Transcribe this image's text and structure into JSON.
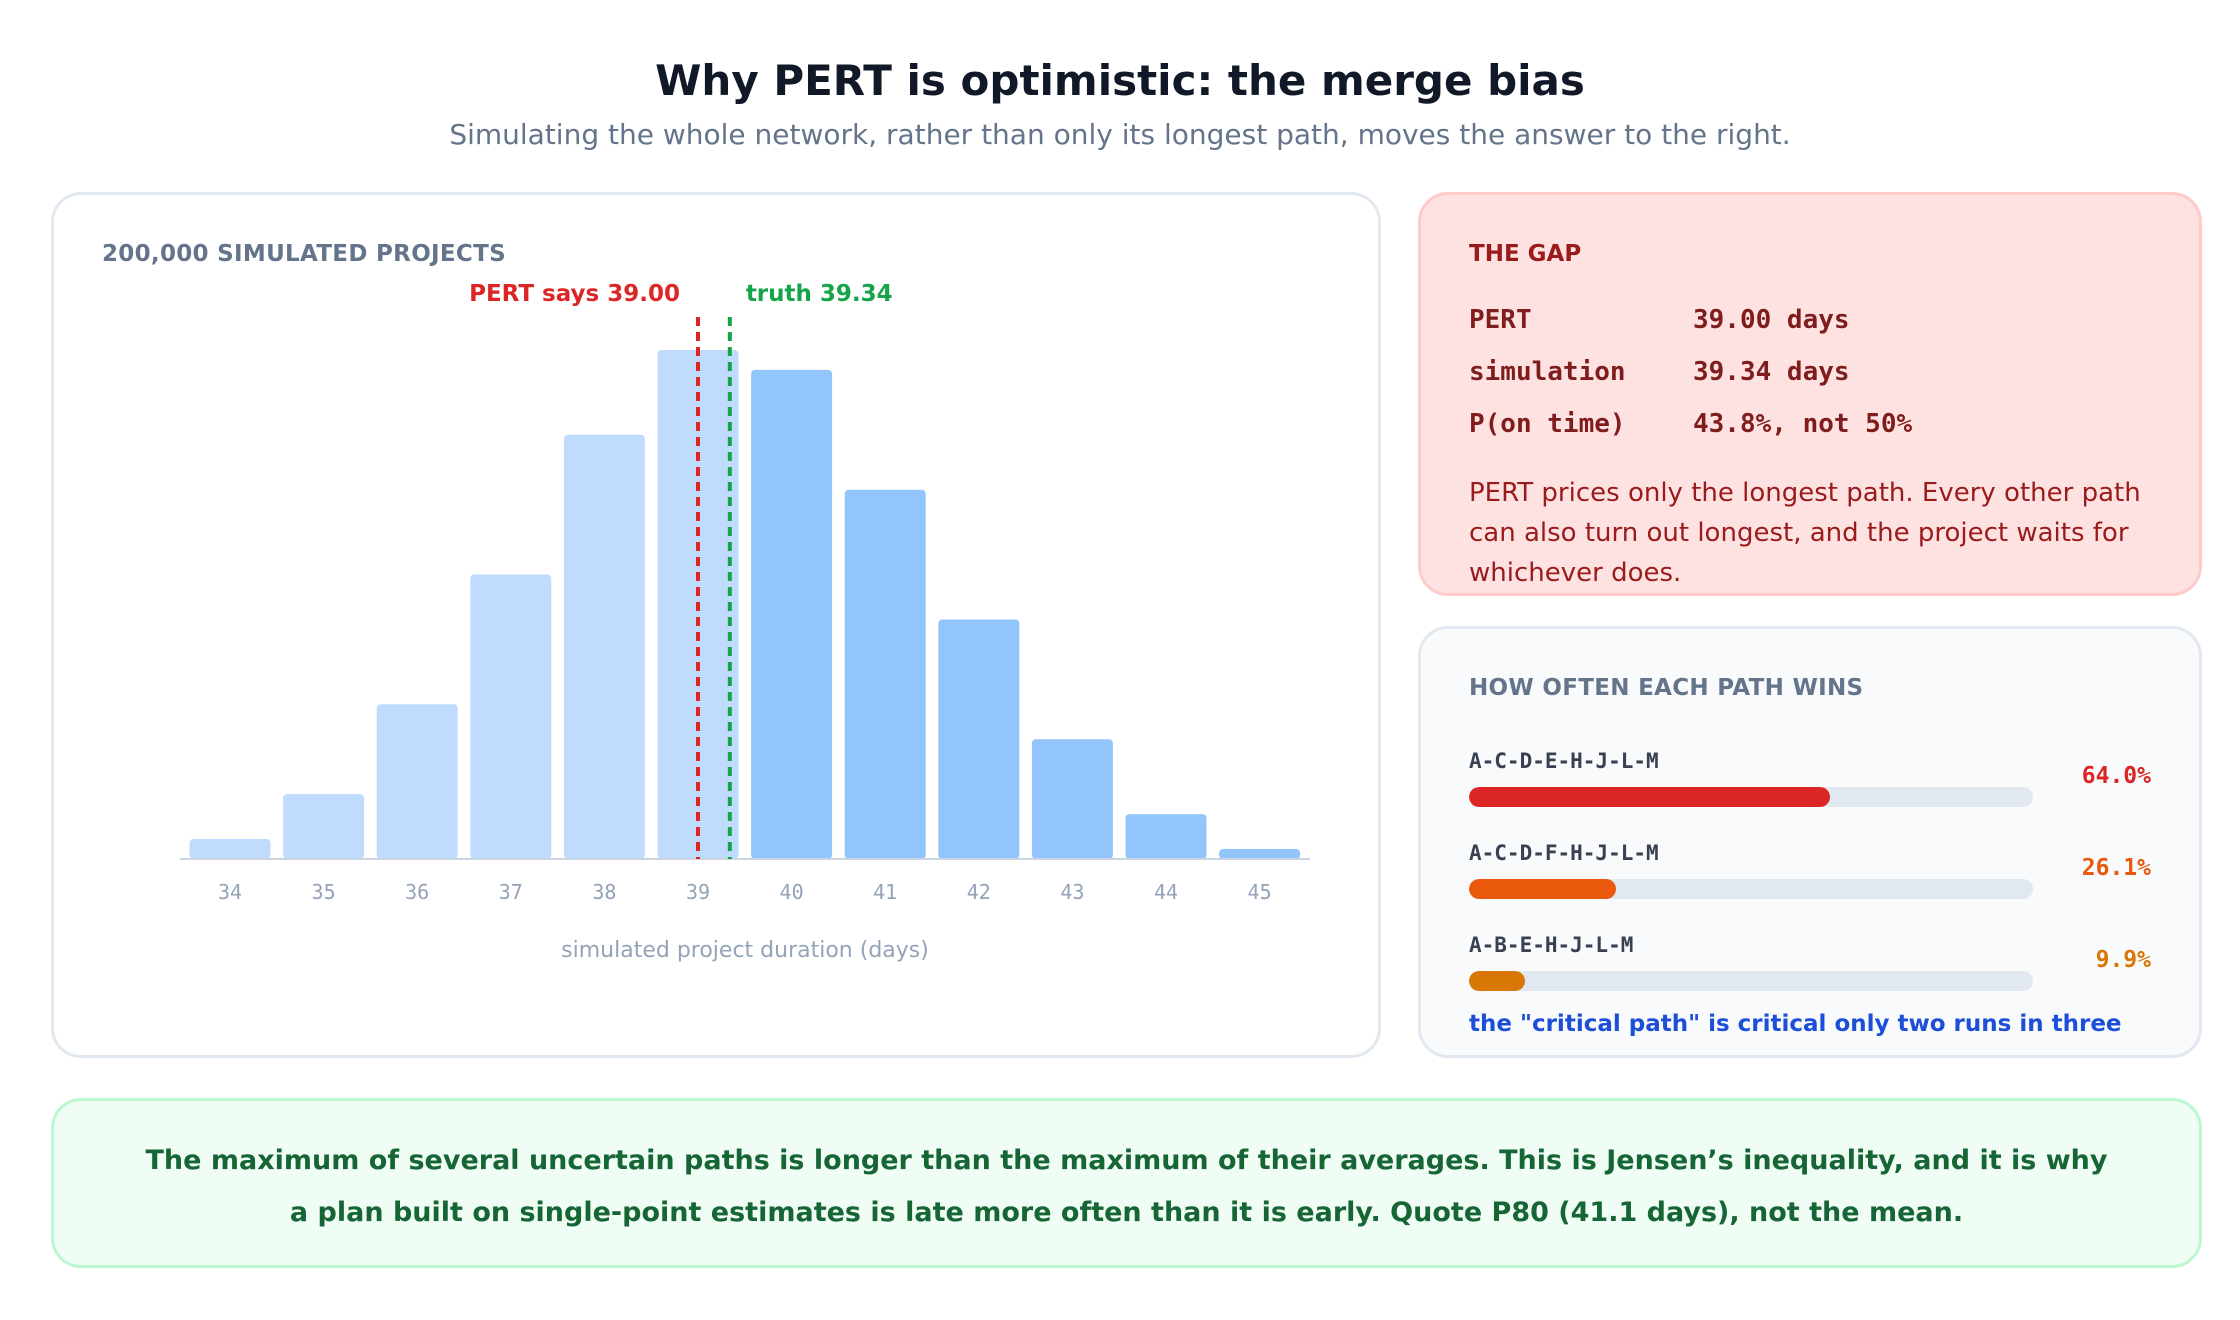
{
  "header": {
    "title": "Why PERT is optimistic: the merge bias",
    "subtitle": "Simulating the whole network, rather than only its longest path, moves the answer to the right."
  },
  "chart_card": {
    "label": "200,000 SIMULATED PROJECTS"
  },
  "chart_data": {
    "type": "bar",
    "categories": [
      "34",
      "35",
      "36",
      "37",
      "38",
      "39",
      "40",
      "41",
      "42",
      "43",
      "44",
      "45"
    ],
    "values": [
      0.4,
      1.3,
      3.1,
      5.7,
      8.5,
      10.2,
      9.8,
      7.4,
      4.8,
      2.4,
      0.9,
      0.2
    ],
    "xlabel": "simulated project duration (days)",
    "ylabel": "",
    "ylim": [
      0,
      10.5
    ],
    "grid": false,
    "colors": {
      "left_of_truth": "#bfdbfe",
      "right_of_truth": "#93c5fd"
    },
    "markers": [
      {
        "label": "PERT says 39.00",
        "x": 39.0,
        "color": "#dc2626"
      },
      {
        "label": "truth 39.34",
        "x": 39.34,
        "color": "#16a34a"
      }
    ]
  },
  "gap": {
    "label": "THE GAP",
    "rows": [
      {
        "key": "PERT",
        "value": "39.00 days"
      },
      {
        "key": "simulation",
        "value": "39.34 days"
      },
      {
        "key": "P(on time)",
        "value": "43.8%, not 50%"
      }
    ],
    "text": "PERT prices only the longest path. Every other path can also turn out longest, and the project waits for whichever does."
  },
  "paths": {
    "label": "HOW OFTEN EACH PATH WINS",
    "items": [
      {
        "name": "A-C-D-E-H-J-L-M",
        "pct_label": "64.0%",
        "share": 0.64,
        "color": "#dc2626"
      },
      {
        "name": "A-C-D-F-H-J-L-M",
        "pct_label": "26.1%",
        "share": 0.261,
        "color": "#ea580c"
      },
      {
        "name": "A-B-E-H-J-L-M",
        "pct_label": "9.9%",
        "share": 0.099,
        "color": "#d97706"
      }
    ],
    "footnote": "the \"critical path\" is critical only two runs in three"
  },
  "note": {
    "line1": "The maximum of several uncertain paths is longer than the maximum of their averages. This is Jensen’s inequality, and it is why",
    "line2": "a plan built on single-point estimates is late more often than it is early. Quote P80 (41.1 days), not the mean."
  }
}
